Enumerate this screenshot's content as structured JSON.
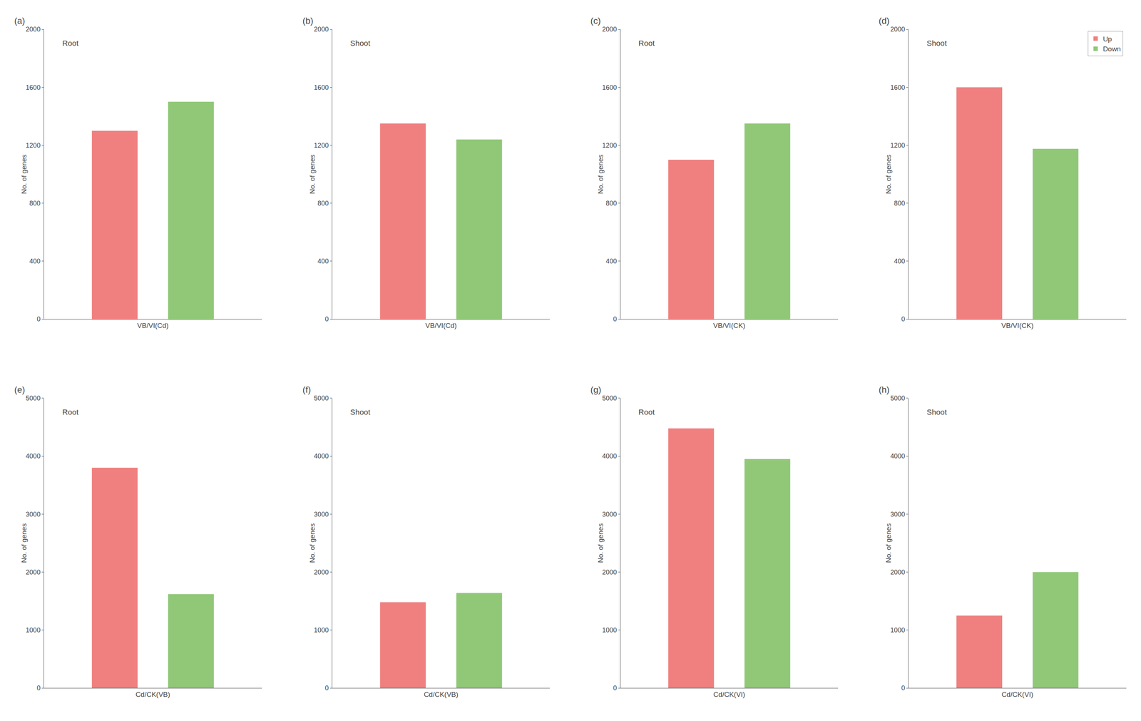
{
  "chart_data": [
    {
      "type": "bar",
      "title": "Root",
      "annotations": [
        "(a)"
      ],
      "categories": [
        "VB/VI(Cd)"
      ],
      "ylabel": "No. of genes",
      "series": [
        {
          "color": "#F08080",
          "values": [
            1300
          ]
        },
        {
          "color": "#90C878",
          "values": [
            1500
          ]
        }
      ],
      "ylim": [
        0,
        2000
      ],
      "yticks": [
        0,
        400,
        800,
        1200,
        1600,
        2000
      ],
      "grid": false
    },
    {
      "type": "bar",
      "title": "Shoot",
      "annotations": [
        "(b)"
      ],
      "categories": [
        "VB/VI(Cd)"
      ],
      "ylabel": "No. of genes",
      "series": [
        {
          "color": "#F08080",
          "values": [
            1350
          ]
        },
        {
          "color": "#90C878",
          "values": [
            1240
          ]
        }
      ],
      "ylim": [
        0,
        2000
      ],
      "yticks": [
        0,
        400,
        800,
        1200,
        1600,
        2000
      ],
      "grid": false
    },
    {
      "type": "bar",
      "title": "Root",
      "annotations": [
        "(c)"
      ],
      "categories": [
        "VB/VI(CK)"
      ],
      "ylabel": "No. of genes",
      "series": [
        {
          "color": "#F08080",
          "values": [
            1100
          ]
        },
        {
          "color": "#90C878",
          "values": [
            1350
          ]
        }
      ],
      "ylim": [
        0,
        2000
      ],
      "yticks": [
        0,
        400,
        800,
        1200,
        1600,
        2000
      ],
      "grid": false
    },
    {
      "type": "bar",
      "title": "Shoot",
      "annotations": [
        "(d)"
      ],
      "categories": [
        "VB/VI(CK)"
      ],
      "ylabel": "No. of genes",
      "series": [
        {
          "name": "Up",
          "color": "#F08080",
          "values": [
            1600
          ]
        },
        {
          "name": "Down",
          "color": "#90C878",
          "values": [
            1175
          ]
        }
      ],
      "ylim": [
        0,
        2000
      ],
      "yticks": [
        0,
        400,
        800,
        1200,
        1600,
        2000
      ],
      "grid": false,
      "legend": "upper right"
    },
    {
      "type": "bar",
      "title": "Root",
      "annotations": [
        "(e)"
      ],
      "categories": [
        "Cd/CK(VB)"
      ],
      "ylabel": "No. of genes",
      "series": [
        {
          "color": "#F08080",
          "values": [
            3800
          ]
        },
        {
          "color": "#90C878",
          "values": [
            1620
          ]
        }
      ],
      "ylim": [
        0,
        5000
      ],
      "yticks": [
        0,
        1000,
        2000,
        3000,
        4000,
        5000
      ],
      "grid": false
    },
    {
      "type": "bar",
      "title": "Shoot",
      "annotations": [
        "(f)"
      ],
      "categories": [
        "Cd/CK(VB)"
      ],
      "ylabel": "No. of genes",
      "series": [
        {
          "color": "#F08080",
          "values": [
            1480
          ]
        },
        {
          "color": "#90C878",
          "values": [
            1640
          ]
        }
      ],
      "ylim": [
        0,
        5000
      ],
      "yticks": [
        0,
        1000,
        2000,
        3000,
        4000,
        5000
      ],
      "grid": false
    },
    {
      "type": "bar",
      "title": "Root",
      "annotations": [
        "(g)"
      ],
      "categories": [
        "Cd/CK(VI)"
      ],
      "ylabel": "No. of genes",
      "series": [
        {
          "color": "#F08080",
          "values": [
            4480
          ]
        },
        {
          "color": "#90C878",
          "values": [
            3950
          ]
        }
      ],
      "ylim": [
        0,
        5000
      ],
      "yticks": [
        0,
        1000,
        2000,
        3000,
        4000,
        5000
      ],
      "grid": false
    },
    {
      "type": "bar",
      "title": "Shoot",
      "annotations": [
        "(h)"
      ],
      "categories": [
        "Cd/CK(VI)"
      ],
      "ylabel": "No. of genes",
      "series": [
        {
          "color": "#F08080",
          "values": [
            1250
          ]
        },
        {
          "color": "#90C878",
          "values": [
            2000
          ]
        }
      ],
      "ylim": [
        0,
        5000
      ],
      "yticks": [
        0,
        1000,
        2000,
        3000,
        4000,
        5000
      ],
      "grid": false
    }
  ]
}
